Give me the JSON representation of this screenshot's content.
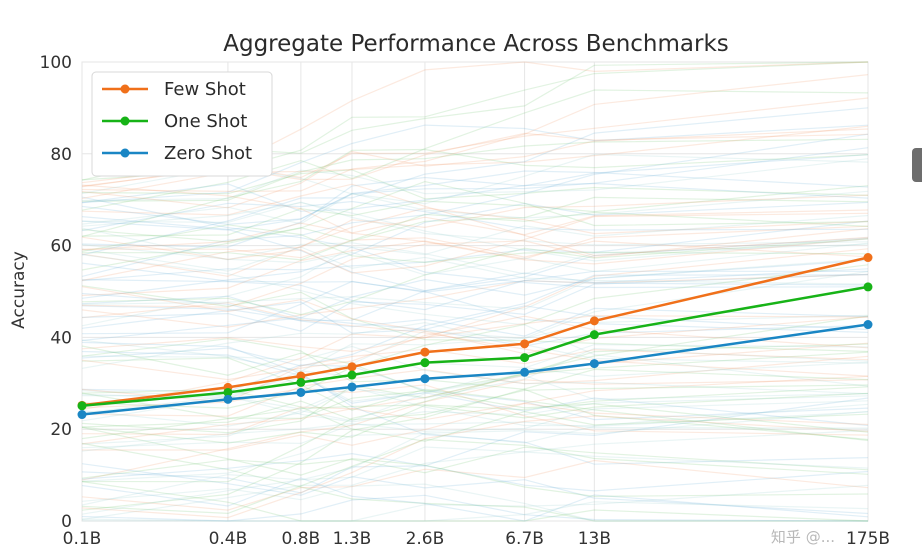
{
  "chart_data": {
    "type": "line",
    "title": "Aggregate Performance Across Benchmarks",
    "xlabel": "",
    "ylabel": "Accuracy",
    "categories": [
      "0.1B",
      "0.4B",
      "0.8B",
      "1.3B",
      "2.6B",
      "6.7B",
      "13B",
      "175B"
    ],
    "x_values_billions": [
      0.1,
      0.4,
      0.8,
      1.3,
      2.6,
      6.7,
      13,
      175
    ],
    "x_scale": "log",
    "ylim": [
      0,
      100
    ],
    "yticks": [
      0,
      20,
      40,
      60,
      80,
      100
    ],
    "grid": true,
    "legend_position": "top-left",
    "series": [
      {
        "name": "Few Shot",
        "color": "#f0701a",
        "values": [
          25.2,
          29.1,
          31.6,
          33.6,
          36.8,
          38.6,
          43.6,
          57.4
        ]
      },
      {
        "name": "One Shot",
        "color": "#17b317",
        "values": [
          25.1,
          28.0,
          30.2,
          31.8,
          34.5,
          35.6,
          40.6,
          51.0
        ]
      },
      {
        "name": "Zero Shot",
        "color": "#1a86c4",
        "values": [
          23.2,
          26.5,
          28.0,
          29.2,
          31.0,
          32.4,
          34.3,
          42.8
        ]
      }
    ],
    "background_lines": {
      "count": 120,
      "description": "faint per-benchmark lines in orange, green and blue shades",
      "opacity": 0.22
    }
  },
  "watermark": "知乎 @..."
}
